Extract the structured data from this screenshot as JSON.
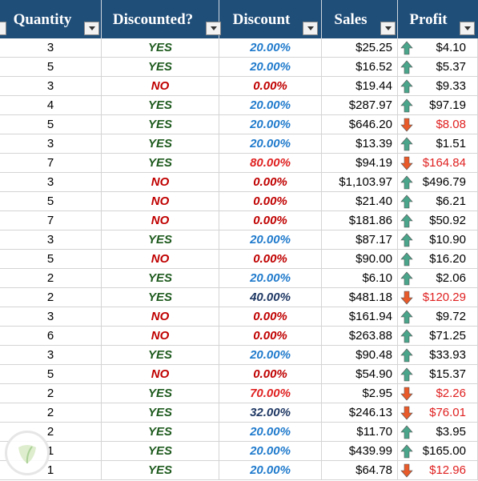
{
  "headers": [
    {
      "label": "Quantity"
    },
    {
      "label": "Discounted?"
    },
    {
      "label": "Discount"
    },
    {
      "label": "Sales"
    },
    {
      "label": "Profit"
    }
  ],
  "colors": {
    "header_bg": "#1f4e79",
    "yes": "#1e5a1e",
    "no": "#c00000",
    "pct_20": "#1f7acc",
    "pct_zero": "#c00000",
    "pct_high": "#e02020",
    "pct_mid": "#1f3864",
    "profit_neg": "#e02020",
    "arrow_up": "#4aa58a",
    "arrow_down": "#e85a2a"
  },
  "rows": [
    {
      "quantity": "3",
      "discounted": "YES",
      "discount": "20.00%",
      "discount_style": "pct_20",
      "sales": "$25.25",
      "profit": "$4.10",
      "trend": "up"
    },
    {
      "quantity": "5",
      "discounted": "YES",
      "discount": "20.00%",
      "discount_style": "pct_20",
      "sales": "$16.52",
      "profit": "$5.37",
      "trend": "up"
    },
    {
      "quantity": "3",
      "discounted": "NO",
      "discount": "0.00%",
      "discount_style": "pct_zero",
      "sales": "$19.44",
      "profit": "$9.33",
      "trend": "up"
    },
    {
      "quantity": "4",
      "discounted": "YES",
      "discount": "20.00%",
      "discount_style": "pct_20",
      "sales": "$287.97",
      "profit": "$97.19",
      "trend": "up"
    },
    {
      "quantity": "5",
      "discounted": "YES",
      "discount": "20.00%",
      "discount_style": "pct_20",
      "sales": "$646.20",
      "profit": "$8.08",
      "trend": "down"
    },
    {
      "quantity": "3",
      "discounted": "YES",
      "discount": "20.00%",
      "discount_style": "pct_20",
      "sales": "$13.39",
      "profit": "$1.51",
      "trend": "up"
    },
    {
      "quantity": "7",
      "discounted": "YES",
      "discount": "80.00%",
      "discount_style": "pct_high",
      "sales": "$94.19",
      "profit": "$164.84",
      "trend": "down"
    },
    {
      "quantity": "3",
      "discounted": "NO",
      "discount": "0.00%",
      "discount_style": "pct_zero",
      "sales": "$1,103.97",
      "profit": "$496.79",
      "trend": "up"
    },
    {
      "quantity": "5",
      "discounted": "NO",
      "discount": "0.00%",
      "discount_style": "pct_zero",
      "sales": "$21.40",
      "profit": "$6.21",
      "trend": "up"
    },
    {
      "quantity": "7",
      "discounted": "NO",
      "discount": "0.00%",
      "discount_style": "pct_zero",
      "sales": "$181.86",
      "profit": "$50.92",
      "trend": "up"
    },
    {
      "quantity": "3",
      "discounted": "YES",
      "discount": "20.00%",
      "discount_style": "pct_20",
      "sales": "$87.17",
      "profit": "$10.90",
      "trend": "up"
    },
    {
      "quantity": "5",
      "discounted": "NO",
      "discount": "0.00%",
      "discount_style": "pct_zero",
      "sales": "$90.00",
      "profit": "$16.20",
      "trend": "up"
    },
    {
      "quantity": "2",
      "discounted": "YES",
      "discount": "20.00%",
      "discount_style": "pct_20",
      "sales": "$6.10",
      "profit": "$2.06",
      "trend": "up"
    },
    {
      "quantity": "2",
      "discounted": "YES",
      "discount": "40.00%",
      "discount_style": "pct_mid",
      "sales": "$481.18",
      "profit": "$120.29",
      "trend": "down"
    },
    {
      "quantity": "3",
      "discounted": "NO",
      "discount": "0.00%",
      "discount_style": "pct_zero",
      "sales": "$161.94",
      "profit": "$9.72",
      "trend": "up"
    },
    {
      "quantity": "6",
      "discounted": "NO",
      "discount": "0.00%",
      "discount_style": "pct_zero",
      "sales": "$263.88",
      "profit": "$71.25",
      "trend": "up"
    },
    {
      "quantity": "3",
      "discounted": "YES",
      "discount": "20.00%",
      "discount_style": "pct_20",
      "sales": "$90.48",
      "profit": "$33.93",
      "trend": "up"
    },
    {
      "quantity": "5",
      "discounted": "NO",
      "discount": "0.00%",
      "discount_style": "pct_zero",
      "sales": "$54.90",
      "profit": "$15.37",
      "trend": "up"
    },
    {
      "quantity": "2",
      "discounted": "YES",
      "discount": "70.00%",
      "discount_style": "pct_high",
      "sales": "$2.95",
      "profit": "$2.26",
      "trend": "down"
    },
    {
      "quantity": "2",
      "discounted": "YES",
      "discount": "32.00%",
      "discount_style": "pct_mid",
      "sales": "$246.13",
      "profit": "$76.01",
      "trend": "down"
    },
    {
      "quantity": "2",
      "discounted": "YES",
      "discount": "20.00%",
      "discount_style": "pct_20",
      "sales": "$11.70",
      "profit": "$3.95",
      "trend": "up"
    },
    {
      "quantity": "1",
      "discounted": "YES",
      "discount": "20.00%",
      "discount_style": "pct_20",
      "sales": "$439.99",
      "profit": "$165.00",
      "trend": "up"
    },
    {
      "quantity": "1",
      "discounted": "YES",
      "discount": "20.00%",
      "discount_style": "pct_20",
      "sales": "$64.78",
      "profit": "$12.96",
      "trend": "down"
    }
  ]
}
